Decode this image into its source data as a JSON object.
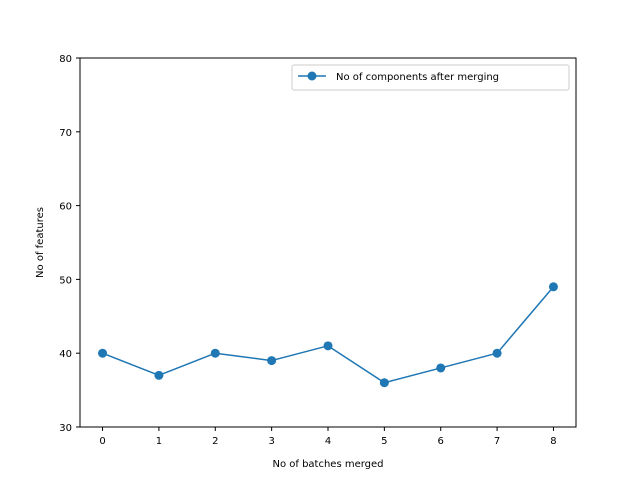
{
  "chart_data": {
    "type": "line",
    "title": "",
    "xlabel": "No of batches merged",
    "ylabel": "No of features",
    "x": [
      0,
      1,
      2,
      3,
      4,
      5,
      6,
      7,
      8
    ],
    "xlim": [
      -0.4,
      8.4
    ],
    "ylim": [
      30,
      80
    ],
    "xticks": [
      0,
      1,
      2,
      3,
      4,
      5,
      6,
      7,
      8
    ],
    "yticks": [
      30,
      40,
      50,
      60,
      70,
      80
    ],
    "grid": false,
    "legend_position": "top-right",
    "series": [
      {
        "name": "No of components after merging",
        "color": "#1f77b4",
        "marker": "circle",
        "values": [
          40,
          37,
          40,
          39,
          41,
          36,
          38,
          40,
          49
        ]
      }
    ]
  }
}
